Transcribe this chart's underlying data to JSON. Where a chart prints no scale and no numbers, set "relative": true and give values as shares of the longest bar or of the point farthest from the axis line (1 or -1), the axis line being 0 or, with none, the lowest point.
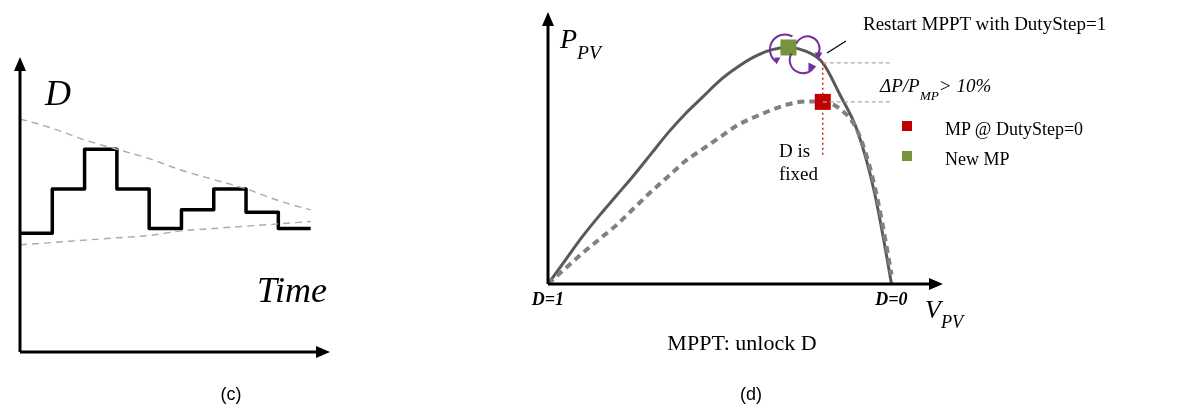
{
  "chart_data": [
    {
      "type": "step",
      "relative": true,
      "xlabel": "Time",
      "ylabel": "D",
      "tick_labels": false,
      "categories": [
        null,
        null,
        null,
        null,
        null,
        null,
        null,
        null,
        null,
        null
      ],
      "series": [
        {
          "color": "#000000",
          "values": [
            0.51,
            0.7,
            0.87,
            0.7,
            0.53,
            0.61,
            0.7,
            0.6,
            0.53,
            0.53
          ]
        },
        {
          "type": "line",
          "color": "#aaaaaa",
          "line_style": "dashed",
          "values": [
            1,
            0.96,
            0.91,
            0.87,
            0.83,
            0.78,
            0.74,
            0.7,
            0.65,
            0.61
          ]
        },
        {
          "type": "line",
          "color": "#aaaaaa",
          "line_style": "dashed",
          "values": [
            0.46,
            0.47,
            0.48,
            0.49,
            0.5,
            0.52,
            0.53,
            0.54,
            0.55,
            0.56
          ]
        }
      ],
      "annotations": [
        "(c)"
      ]
    },
    {
      "type": "line",
      "relative": true,
      "xlabel": "V$_{PV}$",
      "ylabel": "P$_{PV}$",
      "tick_labels": "x",
      "legend": "right",
      "categories": [
        "D=1",
        null,
        null,
        null,
        null,
        null,
        null,
        null,
        null,
        null,
        null,
        null,
        null,
        null,
        null,
        null,
        null,
        null,
        null,
        null,
        "D=0",
        null,
        null,
        null
      ],
      "series": [
        {
          "color": "#595959",
          "values": [
            0,
            0.1,
            0.2,
            0.29,
            0.375,
            0.46,
            0.55,
            0.64,
            0.72,
            0.79,
            0.86,
            0.915,
            0.96,
            0.99,
            1,
            0.985,
            0.935,
            0.8,
            0.65,
            0.39,
            0,
            null,
            null,
            null
          ]
        },
        {
          "color": "#808080",
          "line_style": "dashed",
          "values": [
            0,
            0.065,
            0.13,
            0.19,
            0.25,
            0.32,
            0.39,
            0.455,
            0.52,
            0.57,
            0.62,
            0.67,
            0.705,
            0.735,
            0.76,
            0.772,
            0.77,
            0.74,
            0.65,
            0.42,
            0.04,
            null,
            null,
            null
          ]
        },
        {
          "type": "scatter",
          "name": "MP @ DutyStep=0",
          "color": "#c00000",
          "marker": "square",
          "values": [
            null,
            null,
            null,
            null,
            null,
            null,
            null,
            null,
            null,
            null,
            null,
            null,
            null,
            null,
            null,
            null,
            0.77,
            null,
            null,
            null,
            null,
            null,
            null,
            null
          ]
        },
        {
          "type": "scatter",
          "name": "New MP",
          "color": "#77933c",
          "marker": "square",
          "values": [
            null,
            null,
            null,
            null,
            null,
            null,
            null,
            null,
            null,
            null,
            null,
            null,
            null,
            null,
            1,
            null,
            null,
            null,
            null,
            null,
            null,
            null,
            null,
            null
          ]
        }
      ],
      "annotations": [
        "Restart MPPT with DutyStep=1",
        "ΔP/P$_{MP}$> 10%",
        "D is fixed",
        "MPPT: unlock D",
        "(d)"
      ]
    }
  ]
}
